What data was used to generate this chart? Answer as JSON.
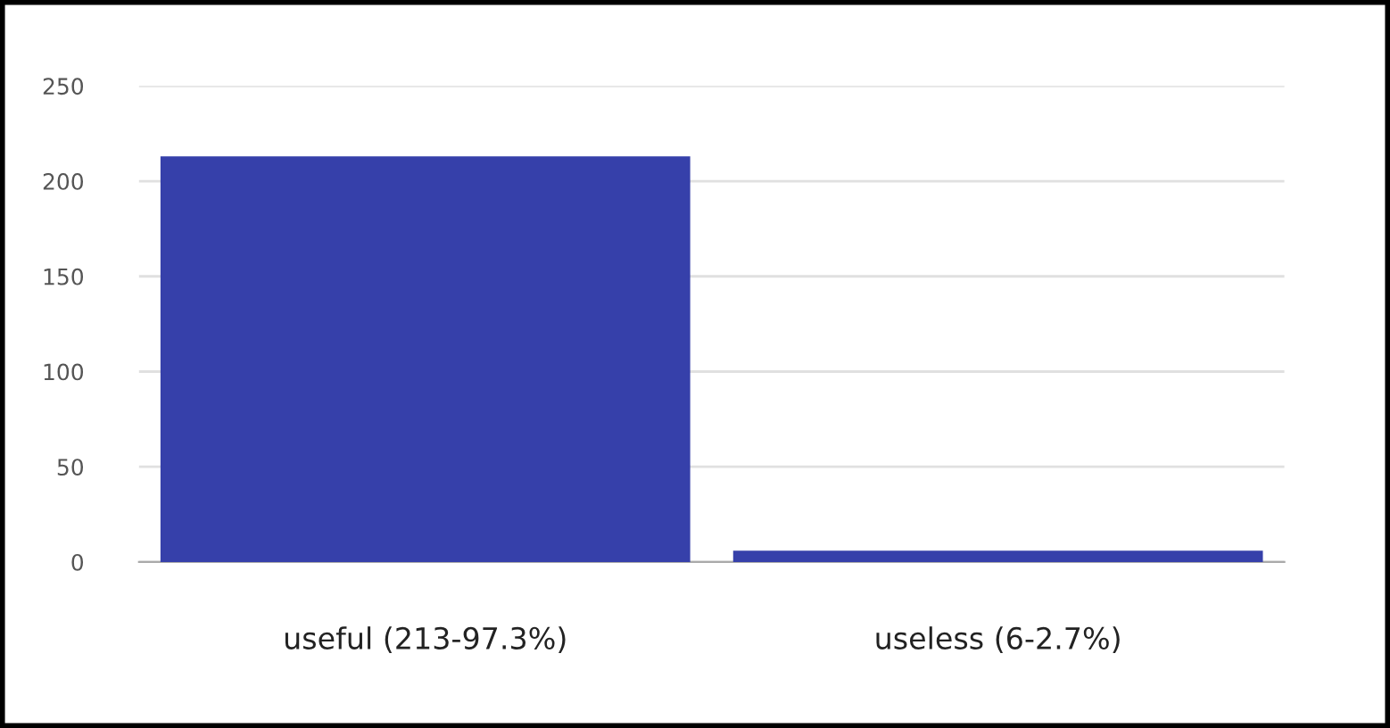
{
  "chart_data": {
    "type": "bar",
    "categories": [
      "useful (213-97.3%)",
      "useless (6-2.7%)"
    ],
    "values": [
      213,
      6
    ],
    "color": "#3640aa",
    "ylim": [
      0,
      250
    ],
    "yticks": [
      0,
      50,
      100,
      150,
      200,
      250
    ],
    "grid": "y"
  }
}
